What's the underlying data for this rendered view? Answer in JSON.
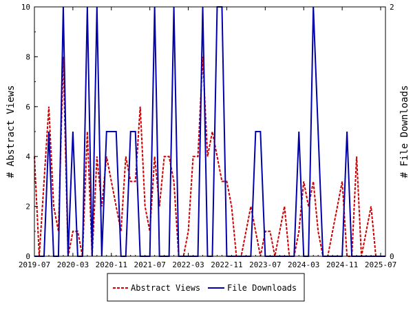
{
  "chart_data": {
    "type": "line",
    "ylabel": "# Abstract Views",
    "y2label": "# File Downloads",
    "xlim": [
      "2019-07",
      "2025-08"
    ],
    "ylim": [
      0,
      10
    ],
    "y2lim": [
      0,
      2
    ],
    "x_tick_labels": [
      "2019-07",
      "2020-03",
      "2020-11",
      "2021-07",
      "2022-03",
      "2022-11",
      "2023-07",
      "2024-03",
      "2024-11",
      "2025-07"
    ],
    "y_tick_labels": [
      "0",
      "2",
      "4",
      "6",
      "8",
      "10"
    ],
    "y2_tick_labels": [
      "0",
      "2"
    ],
    "legend_position": "bottom",
    "series": [
      {
        "name": "Abstract Views",
        "color": "#cc0000",
        "style": "dashed",
        "axis": "left",
        "x": [
          "2019-07",
          "2019-08",
          "2019-09",
          "2019-10",
          "2019-11",
          "2019-12",
          "2020-01",
          "2020-02",
          "2020-03",
          "2020-04",
          "2020-05",
          "2020-06",
          "2020-07",
          "2020-08",
          "2020-09",
          "2020-10",
          "2020-11",
          "2020-12",
          "2021-01",
          "2021-02",
          "2021-03",
          "2021-04",
          "2021-05",
          "2021-06",
          "2021-07",
          "2021-08",
          "2021-09",
          "2021-10",
          "2021-11",
          "2021-12",
          "2022-01",
          "2022-02",
          "2022-03",
          "2022-04",
          "2022-05",
          "2022-06",
          "2022-07",
          "2022-08",
          "2022-09",
          "2022-10",
          "2022-11",
          "2022-12",
          "2023-01",
          "2023-02",
          "2023-03",
          "2023-04",
          "2023-05",
          "2023-06",
          "2023-07",
          "2023-08",
          "2023-09",
          "2023-10",
          "2023-11",
          "2023-12",
          "2024-01",
          "2024-02",
          "2024-03",
          "2024-04",
          "2024-05",
          "2024-06",
          "2024-07",
          "2024-08",
          "2024-09",
          "2024-10",
          "2024-11",
          "2024-12",
          "2025-01",
          "2025-02",
          "2025-03",
          "2025-04",
          "2025-05",
          "2025-06",
          "2025-07",
          "2025-08"
        ],
        "values": [
          4,
          0,
          3,
          6,
          2,
          1,
          8,
          0,
          1,
          1,
          0,
          5,
          0,
          4,
          2,
          4,
          3,
          2,
          1,
          4,
          3,
          3,
          6,
          2,
          1,
          4,
          2,
          4,
          4,
          3,
          0,
          0,
          1,
          4,
          4,
          8,
          4,
          5,
          4,
          3,
          3,
          2,
          0,
          0,
          1,
          2,
          1,
          0,
          1,
          1,
          0,
          1,
          2,
          0,
          0,
          1,
          3,
          2,
          3,
          1,
          0,
          0,
          1,
          2,
          3,
          0,
          0,
          4,
          0,
          1,
          2,
          0,
          0,
          0
        ]
      },
      {
        "name": "File Downloads",
        "color": "#0000aa",
        "style": "solid",
        "axis": "right",
        "x": [
          "2019-07",
          "2019-08",
          "2019-09",
          "2019-10",
          "2019-11",
          "2019-12",
          "2020-01",
          "2020-02",
          "2020-03",
          "2020-04",
          "2020-05",
          "2020-06",
          "2020-07",
          "2020-08",
          "2020-09",
          "2020-10",
          "2020-11",
          "2020-12",
          "2021-01",
          "2021-02",
          "2021-03",
          "2021-04",
          "2021-05",
          "2021-06",
          "2021-07",
          "2021-08",
          "2021-09",
          "2021-10",
          "2021-11",
          "2021-12",
          "2022-01",
          "2022-02",
          "2022-03",
          "2022-04",
          "2022-05",
          "2022-06",
          "2022-07",
          "2022-08",
          "2022-09",
          "2022-10",
          "2022-11",
          "2022-12",
          "2023-01",
          "2023-02",
          "2023-03",
          "2023-04",
          "2023-05",
          "2023-06",
          "2023-07",
          "2023-08",
          "2023-09",
          "2023-10",
          "2023-11",
          "2023-12",
          "2024-01",
          "2024-02",
          "2024-03",
          "2024-04",
          "2024-05",
          "2024-06",
          "2024-07",
          "2024-08",
          "2024-09",
          "2024-10",
          "2024-11",
          "2024-12",
          "2025-01",
          "2025-02",
          "2025-03",
          "2025-04",
          "2025-05",
          "2025-06",
          "2025-07",
          "2025-08"
        ],
        "values": [
          0,
          0,
          0,
          1,
          0,
          0,
          2,
          0,
          1,
          0,
          0,
          2,
          0,
          2,
          0,
          1,
          1,
          1,
          0,
          0,
          1,
          1,
          0,
          0,
          0,
          2,
          0,
          0,
          0,
          2,
          0,
          0,
          0,
          0,
          0,
          2,
          0,
          0,
          2,
          2,
          0,
          0,
          0,
          0,
          0,
          0,
          1,
          1,
          0,
          0,
          0,
          0,
          0,
          0,
          0,
          1,
          0,
          0,
          2,
          1,
          0,
          0,
          0,
          0,
          0,
          1,
          0,
          0,
          0,
          0,
          0,
          0,
          0,
          0
        ]
      }
    ]
  }
}
